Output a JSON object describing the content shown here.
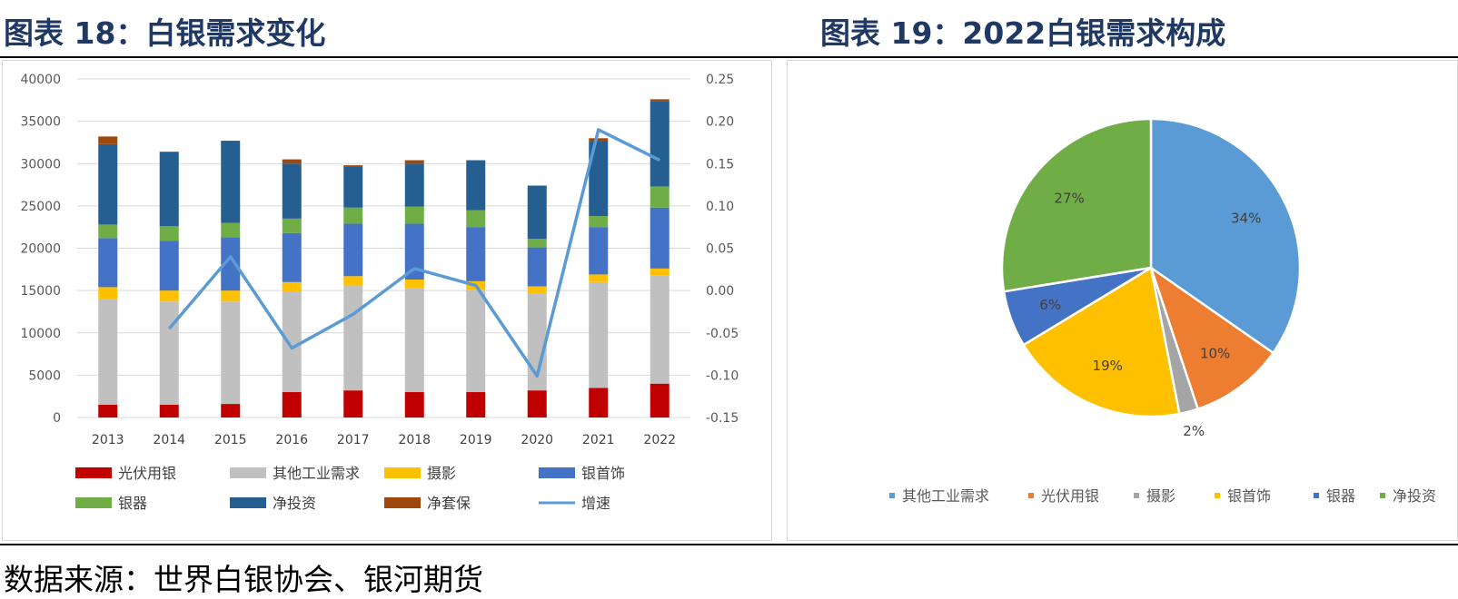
{
  "titles": {
    "left": "图表 18：白银需求变化",
    "right": "图表 19：2022白银需求构成"
  },
  "source": "数据来源：世界白银协会、银河期货",
  "chart_data": [
    {
      "type": "bar",
      "stacked": true,
      "title": "白银需求变化",
      "categories": [
        "2013",
        "2014",
        "2015",
        "2016",
        "2017",
        "2018",
        "2019",
        "2020",
        "2021",
        "2022"
      ],
      "ylim": [
        0,
        40000
      ],
      "yticks": [
        0,
        5000,
        10000,
        15000,
        20000,
        25000,
        30000,
        35000,
        40000
      ],
      "y2lim": [
        -0.15,
        0.25
      ],
      "y2ticks": [
        "0.25",
        "0.20",
        "0.15",
        "0.10",
        "0.05",
        "0.00",
        "-0.05",
        "-0.10",
        "-0.15"
      ],
      "series": [
        {
          "name": "光伏用银",
          "color": "#c00000",
          "values": [
            1500,
            1500,
            1600,
            3000,
            3200,
            3000,
            3000,
            3200,
            3500,
            4000
          ]
        },
        {
          "name": "其他工业需求",
          "color": "#c0c0c0",
          "values": [
            12500,
            12200,
            12100,
            11800,
            12400,
            12300,
            12100,
            11400,
            12500,
            12800
          ]
        },
        {
          "name": "摄影",
          "color": "#ffc000",
          "values": [
            1400,
            1300,
            1300,
            1200,
            1100,
            1000,
            1000,
            900,
            900,
            800
          ]
        },
        {
          "name": "银首饰",
          "color": "#4472c4",
          "values": [
            5800,
            5900,
            6300,
            5800,
            6200,
            6600,
            6400,
            4600,
            5600,
            7200
          ]
        },
        {
          "name": "银器",
          "color": "#70ad47",
          "values": [
            1600,
            1700,
            1700,
            1700,
            1900,
            2000,
            2000,
            1000,
            1300,
            2500
          ]
        },
        {
          "name": "净投资",
          "color": "#255e91",
          "values": [
            9500,
            8800,
            9700,
            6500,
            4800,
            5100,
            5900,
            6300,
            8800,
            10100
          ]
        },
        {
          "name": "净套保",
          "color": "#9e480e",
          "values": [
            900,
            0,
            0,
            500,
            200,
            400,
            0,
            0,
            400,
            200
          ]
        }
      ],
      "line": {
        "name": "增速",
        "color": "#5b9bd5",
        "axis": "right",
        "x": [
          "2014",
          "2015",
          "2016",
          "2017",
          "2018",
          "2019",
          "2020",
          "2021",
          "2022"
        ],
        "values": [
          -0.045,
          0.04,
          -0.068,
          -0.028,
          0.026,
          0.006,
          -0.101,
          0.19,
          0.154
        ]
      },
      "legend_position": "bottom"
    },
    {
      "type": "pie",
      "title": "2022白银需求构成",
      "slices": [
        {
          "name": "其他工业需求",
          "value": 34,
          "label": "34%",
          "color": "#5b9bd5"
        },
        {
          "name": "光伏用银",
          "value": 10,
          "label": "10%",
          "color": "#ed7d31"
        },
        {
          "name": "摄影",
          "value": 2,
          "label": "2%",
          "color": "#a5a5a5"
        },
        {
          "name": "银首饰",
          "value": 19,
          "label": "19%",
          "color": "#ffc000"
        },
        {
          "name": "银器",
          "value": 6,
          "label": "6%",
          "color": "#4472c4"
        },
        {
          "name": "净投资",
          "value": 27,
          "label": "27%",
          "color": "#70ad47"
        }
      ],
      "start_angle": "12 o'clock, clockwise",
      "legend_position": "bottom"
    }
  ]
}
